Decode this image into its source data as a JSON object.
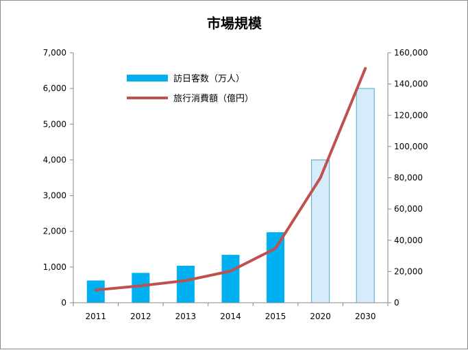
{
  "chart_data": {
    "type": "bar",
    "title": "市場規模",
    "categories": [
      "2011",
      "2012",
      "2013",
      "2014",
      "2015",
      "2020",
      "2030"
    ],
    "series": [
      {
        "name": "訪日客数（万人）",
        "type": "bar",
        "axis": "left",
        "values": [
          622,
          836,
          1036,
          1341,
          1974,
          4000,
          6000
        ],
        "projected_from_index": 5,
        "color": "#00b0f0",
        "projected_color": "#d6ecfb",
        "projected_border": "#4bacc6"
      },
      {
        "name": "旅行消費額（億円）",
        "type": "line",
        "axis": "right",
        "values": [
          8135,
          10846,
          14167,
          20278,
          34771,
          80000,
          150000
        ],
        "color": "#c0504d"
      }
    ],
    "y_left": {
      "min": 0,
      "max": 7000,
      "ticks": [
        "0",
        "1,000",
        "2,000",
        "3,000",
        "4,000",
        "5,000",
        "6,000",
        "7,000"
      ]
    },
    "y_right": {
      "min": 0,
      "max": 160000,
      "ticks": [
        "0",
        "20,000",
        "40,000",
        "60,000",
        "80,000",
        "100,000",
        "120,000",
        "140,000",
        "160,000"
      ]
    },
    "grid": false,
    "legend_position": "top-left"
  }
}
